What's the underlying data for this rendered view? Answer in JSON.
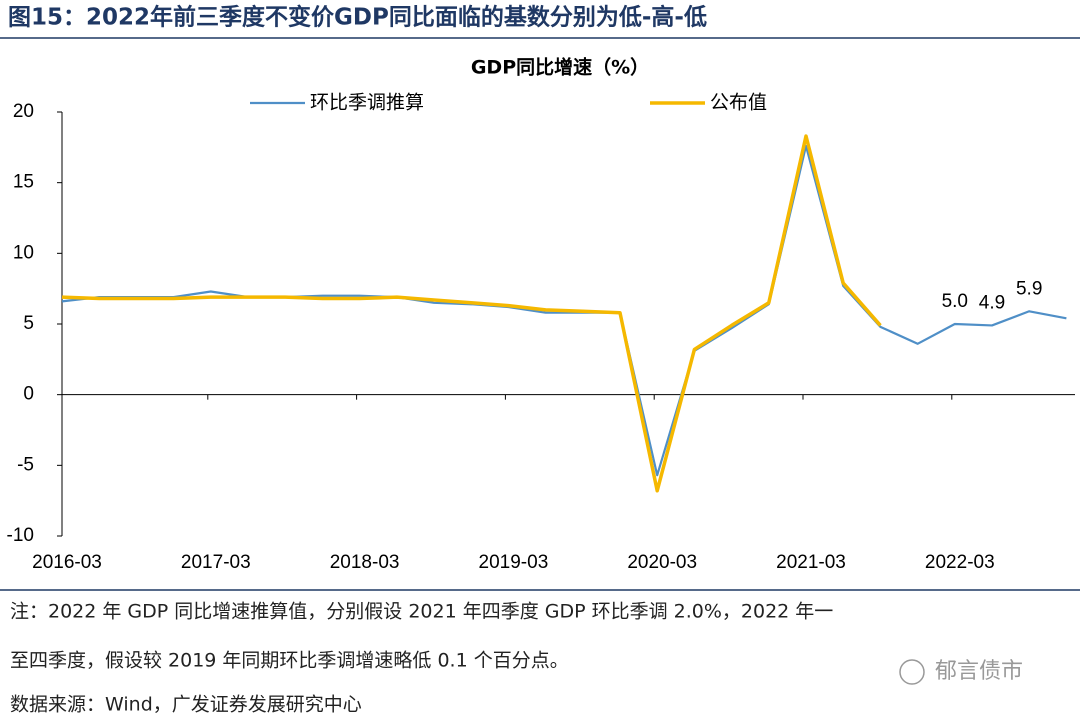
{
  "title": "图15：2022年前三季度不变价GDP同比面临的基数分别为低-高-低",
  "chart_data": {
    "type": "line",
    "title": "GDP同比增速（%）",
    "categories": [
      "2016-03",
      null,
      null,
      null,
      "2017-03",
      null,
      null,
      null,
      "2018-03",
      null,
      null,
      null,
      "2019-03",
      null,
      null,
      null,
      "2020-03",
      null,
      null,
      null,
      "2021-03",
      null,
      null,
      null,
      "2022-03",
      null,
      null,
      null
    ],
    "series": [
      {
        "name": "环比季调推算",
        "color": "#4f8fc7",
        "values": [
          6.6,
          6.9,
          6.9,
          6.9,
          7.3,
          6.9,
          6.9,
          7.0,
          7.0,
          6.9,
          6.5,
          6.4,
          6.2,
          5.8,
          5.8,
          5.8,
          -5.7,
          3.1,
          4.7,
          6.4,
          17.6,
          7.7,
          4.8,
          3.6,
          5.0,
          4.9,
          5.9,
          5.4
        ],
        "value_labels": [
          null,
          null,
          null,
          null,
          null,
          null,
          null,
          null,
          null,
          null,
          null,
          null,
          null,
          null,
          null,
          null,
          null,
          null,
          null,
          null,
          null,
          null,
          null,
          null,
          "5.0",
          "4.9",
          "5.9",
          null
        ]
      },
      {
        "name": "公布值",
        "color": "#f5b800",
        "values": [
          6.9,
          6.8,
          6.8,
          6.8,
          6.9,
          6.9,
          6.9,
          6.8,
          6.8,
          6.9,
          6.7,
          6.5,
          6.3,
          6.0,
          5.9,
          5.8,
          -6.8,
          3.2,
          4.9,
          6.5,
          18.3,
          7.9,
          4.9,
          null,
          null,
          null,
          null,
          null
        ]
      }
    ],
    "ylim": [
      -10,
      20
    ],
    "yticks": [
      -10,
      -5,
      0,
      5,
      10,
      15,
      20
    ]
  },
  "notes": [
    "注：2022 年 GDP 同比增速推算值，分别假设 2021 年四季度 GDP 环比季调 2.0%，2022 年一",
    "至四季度，假设较 2019 年同期环比季调增速略低 0.1 个百分点。",
    "数据来源：Wind，广发证券发展研究中心"
  ],
  "watermark": "郁言债市"
}
